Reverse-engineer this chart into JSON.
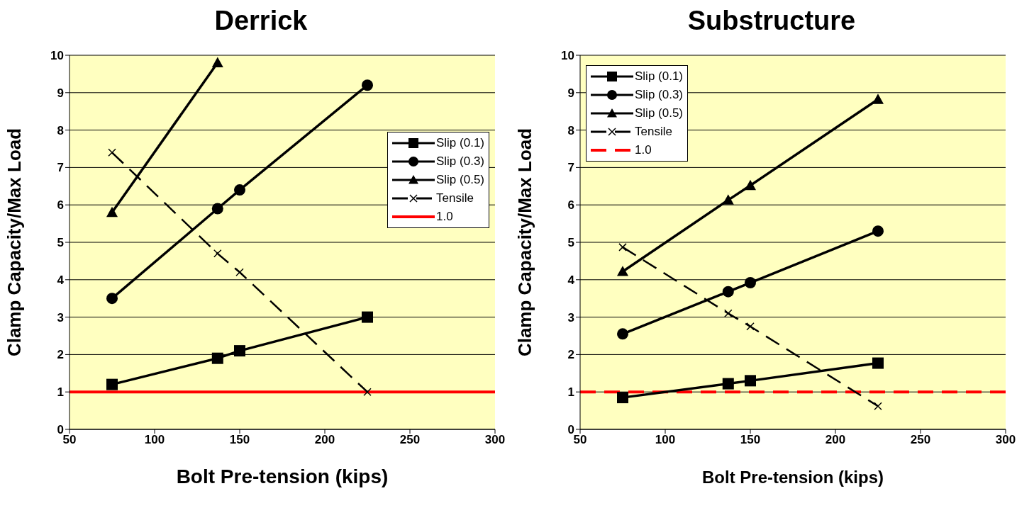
{
  "chart_data": [
    {
      "type": "line",
      "title": "Derrick",
      "xlabel": "Bolt Pre-tension (kips)",
      "ylabel": "Clamp Capacity/Max Load",
      "x": [
        75,
        137,
        150,
        225
      ],
      "xlim": [
        50,
        300
      ],
      "xticks": [
        50,
        100,
        150,
        200,
        250,
        300
      ],
      "ylim": [
        0,
        10
      ],
      "yticks": [
        0,
        1,
        2,
        3,
        4,
        5,
        6,
        7,
        8,
        9,
        10
      ],
      "grid": "y",
      "legend": "top right",
      "series": [
        {
          "name": "Slip (0.1)",
          "color": "#000000",
          "marker": "square",
          "line_style": "solid",
          "values": [
            1.2,
            1.9,
            2.1,
            3.0
          ]
        },
        {
          "name": "Slip (0.3)",
          "color": "#000000",
          "marker": "circle",
          "line_style": "solid",
          "values": [
            3.5,
            5.9,
            6.4,
            9.2
          ]
        },
        {
          "name": "Slip (0.5)",
          "color": "#000000",
          "marker": "triangle",
          "line_style": "solid",
          "values": [
            5.8,
            9.8,
            null,
            null
          ]
        },
        {
          "name": "Tensile",
          "color": "#000000",
          "marker": "cross",
          "line_style": "dashed",
          "values": [
            7.4,
            4.7,
            4.2,
            1.0
          ]
        }
      ],
      "ref_lines": [
        {
          "axis": "y",
          "value": 1,
          "label": "1.0",
          "color": "#ff0000",
          "line_style": "solid"
        }
      ]
    },
    {
      "type": "line",
      "title": "Substructure",
      "xlabel": "Bolt Pre-tension (kips)",
      "ylabel": "Clamp Capacity/Max Load",
      "x": [
        75,
        137,
        150,
        225
      ],
      "xlim": [
        50,
        300
      ],
      "xticks": [
        50,
        100,
        150,
        200,
        250,
        300
      ],
      "ylim": [
        0,
        10
      ],
      "yticks": [
        0,
        1,
        2,
        3,
        4,
        5,
        6,
        7,
        8,
        9,
        10
      ],
      "grid": "y",
      "legend": "top left",
      "series": [
        {
          "name": "Slip (0.1)",
          "color": "#000000",
          "marker": "square",
          "line_style": "solid",
          "values": [
            0.85,
            1.22,
            1.3,
            1.77
          ]
        },
        {
          "name": "Slip (0.3)",
          "color": "#000000",
          "marker": "circle",
          "line_style": "solid",
          "values": [
            2.55,
            3.68,
            3.92,
            5.3
          ]
        },
        {
          "name": "Slip (0.5)",
          "color": "#000000",
          "marker": "triangle",
          "line_style": "solid",
          "values": [
            4.22,
            6.13,
            6.52,
            8.82
          ]
        },
        {
          "name": "Tensile",
          "color": "#000000",
          "marker": "cross",
          "line_style": "dashed",
          "values": [
            4.87,
            3.1,
            2.75,
            0.62
          ]
        }
      ],
      "ref_lines": [
        {
          "axis": "y",
          "value": 1,
          "label": "1.0",
          "color": "#ff0000",
          "line_style": "dashed"
        }
      ]
    }
  ]
}
